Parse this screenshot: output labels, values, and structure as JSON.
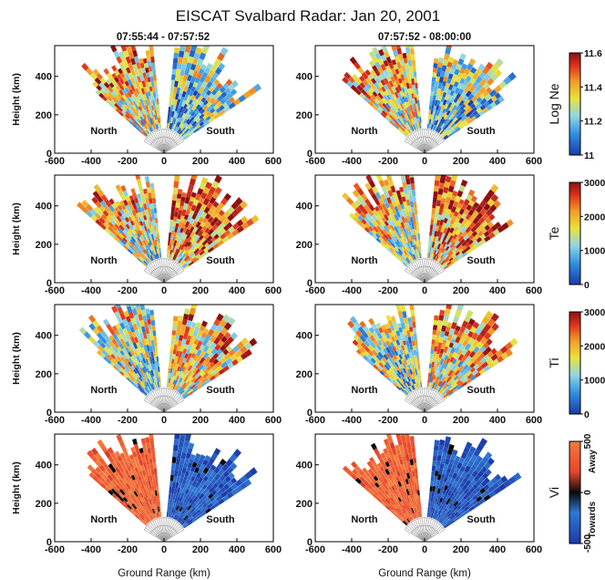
{
  "figure": {
    "title": "EISCAT Svalbard Radar: Jan 20, 2001",
    "column_titles": [
      "07:55:44 - 07:57:52",
      "07:57:52 - 08:00:00"
    ],
    "xlabel": "Ground Range (km)",
    "ylabel": "Height (km)",
    "region_labels": [
      "North",
      "South"
    ]
  },
  "chart_data": {
    "type": "heatmap",
    "title": "EISCAT Svalbard Radar: Jan 20, 2001",
    "xlabel": "Ground Range (km)",
    "ylabel": "Height (km)",
    "xlim": [
      -600,
      600
    ],
    "ylim": [
      0,
      560
    ],
    "x_ticks": [
      "-600",
      "-400",
      "-200",
      "0",
      "200",
      "400",
      "600"
    ],
    "y_ticks": [
      "0",
      "200",
      "400"
    ],
    "columns": [
      "07:55:44 - 07:57:52",
      "07:57:52 - 08:00:00"
    ],
    "grid": false,
    "rows": [
      {
        "parameter": "Log Ne",
        "colorbar_ticks": [
          "11",
          "11.2",
          "11.4",
          "11.6"
        ],
        "range": [
          11,
          11.6
        ],
        "north_level": 0.6,
        "south_level": 0.35,
        "panels": [
          {
            "north_sectors": 18,
            "south_sectors": 17,
            "gate_ranges": [
              130,
              560
            ]
          },
          {
            "north_sectors": 18,
            "south_sectors": 17,
            "gate_ranges": [
              130,
              560
            ]
          }
        ]
      },
      {
        "parameter": "Te",
        "colorbar_ticks": [
          "0",
          "1000",
          "2000",
          "3000"
        ],
        "range": [
          0,
          3000
        ],
        "north_level": 0.55,
        "south_level": 0.75,
        "panels": [
          {
            "north_sectors": 18,
            "south_sectors": 17,
            "gate_ranges": [
              130,
              560
            ]
          },
          {
            "north_sectors": 18,
            "south_sectors": 17,
            "gate_ranges": [
              130,
              560
            ]
          }
        ]
      },
      {
        "parameter": "Ti",
        "colorbar_ticks": [
          "0",
          "1000",
          "2000",
          "3000"
        ],
        "range": [
          0,
          3000
        ],
        "north_level": 0.45,
        "south_level": 0.6,
        "panels": [
          {
            "north_sectors": 18,
            "south_sectors": 17,
            "gate_ranges": [
              130,
              560
            ]
          },
          {
            "north_sectors": 18,
            "south_sectors": 17,
            "gate_ranges": [
              130,
              560
            ]
          }
        ]
      },
      {
        "parameter": "Vi",
        "colorbar_ticks": [
          "-500",
          "0",
          "500"
        ],
        "colorbar_side_labels": [
          "Away",
          "Towards"
        ],
        "range": [
          -500,
          500
        ],
        "north_level": 0.85,
        "south_level": 0.15,
        "panels": [
          {
            "north_sectors": 18,
            "south_sectors": 17,
            "gate_ranges": [
              130,
              560
            ]
          },
          {
            "north_sectors": 18,
            "south_sectors": 17,
            "gate_ranges": [
              130,
              560
            ]
          }
        ]
      }
    ]
  }
}
